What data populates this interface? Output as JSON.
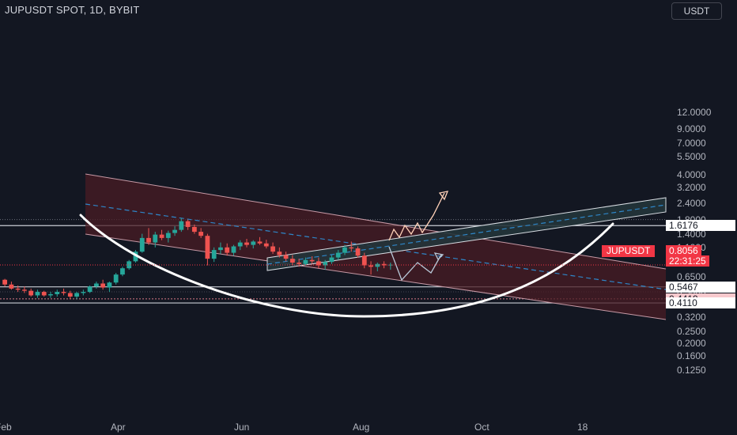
{
  "header": {
    "symbol_title": "JUPUSDT SPOT, 1D, BYBIT",
    "currency_button": "USDT"
  },
  "colors": {
    "background": "#131722",
    "up": "#26a69a",
    "down": "#ef5350",
    "channel_fill": "#4a1c24",
    "channel_edge": "#c79aa6",
    "green_channel_fill": "#23343a",
    "dashed_mid": "#2e86c8",
    "arc": "#ffffff",
    "bull_arrow": "#ffd1b8",
    "bear_arrow": "#b8c8d8",
    "current_price": "#f23645"
  },
  "chart_data": {
    "type": "candlestick",
    "y_scale": "log",
    "yticks": [
      "12.0000",
      "9.0000",
      "7.0000",
      "5.5000",
      "4.0000",
      "3.2000",
      "2.4000",
      "1.8000",
      "1.4000",
      "1.1000",
      "0.8500",
      "0.6500",
      "0.5000",
      "0.3200",
      "0.2500",
      "0.2000",
      "0.1600",
      "0.1250"
    ],
    "xticks": [
      "Feb",
      "Apr",
      "Jun",
      "Aug",
      "Oct",
      "18"
    ],
    "price_levels": [
      {
        "value": "1.6176",
        "style": "light"
      },
      {
        "value": "0.5467",
        "style": "light"
      },
      {
        "value": "0.4419",
        "style": "pink"
      },
      {
        "value": "0.4110",
        "style": "light"
      }
    ],
    "current": {
      "symbol": "JUPUSDT",
      "price": "0.8056",
      "countdown": "22:31:25"
    },
    "ohlc_approx": [
      [
        0.62,
        0.63,
        0.55,
        0.57
      ],
      [
        0.57,
        0.6,
        0.52,
        0.53
      ],
      [
        0.53,
        0.56,
        0.5,
        0.52
      ],
      [
        0.52,
        0.55,
        0.49,
        0.51
      ],
      [
        0.51,
        0.53,
        0.46,
        0.47
      ],
      [
        0.47,
        0.52,
        0.45,
        0.5
      ],
      [
        0.5,
        0.51,
        0.46,
        0.47
      ],
      [
        0.47,
        0.5,
        0.45,
        0.48
      ],
      [
        0.48,
        0.52,
        0.46,
        0.5
      ],
      [
        0.5,
        0.53,
        0.47,
        0.49
      ],
      [
        0.49,
        0.51,
        0.44,
        0.46
      ],
      [
        0.46,
        0.5,
        0.44,
        0.49
      ],
      [
        0.49,
        0.52,
        0.47,
        0.5
      ],
      [
        0.5,
        0.56,
        0.49,
        0.55
      ],
      [
        0.55,
        0.6,
        0.53,
        0.58
      ],
      [
        0.58,
        0.62,
        0.52,
        0.54
      ],
      [
        0.54,
        0.6,
        0.5,
        0.59
      ],
      [
        0.59,
        0.7,
        0.57,
        0.68
      ],
      [
        0.68,
        0.78,
        0.66,
        0.76
      ],
      [
        0.76,
        0.88,
        0.74,
        0.86
      ],
      [
        0.86,
        1.05,
        0.84,
        1.02
      ],
      [
        1.02,
        1.4,
        1.0,
        1.3
      ],
      [
        1.3,
        1.55,
        1.15,
        1.2
      ],
      [
        1.2,
        1.45,
        1.1,
        1.38
      ],
      [
        1.38,
        1.5,
        1.25,
        1.3
      ],
      [
        1.3,
        1.48,
        1.2,
        1.42
      ],
      [
        1.42,
        1.6,
        1.35,
        1.5
      ],
      [
        1.5,
        1.85,
        1.45,
        1.75
      ],
      [
        1.75,
        1.8,
        1.5,
        1.58
      ],
      [
        1.58,
        1.65,
        1.4,
        1.45
      ],
      [
        1.45,
        1.55,
        1.3,
        1.35
      ],
      [
        1.35,
        1.4,
        0.8,
        0.9
      ],
      [
        0.9,
        1.1,
        0.85,
        1.05
      ],
      [
        1.05,
        1.2,
        0.98,
        1.1
      ],
      [
        1.1,
        1.18,
        0.95,
        1.0
      ],
      [
        1.0,
        1.15,
        0.95,
        1.12
      ],
      [
        1.12,
        1.25,
        1.05,
        1.2
      ],
      [
        1.2,
        1.28,
        1.1,
        1.15
      ],
      [
        1.15,
        1.25,
        1.08,
        1.22
      ],
      [
        1.22,
        1.32,
        1.15,
        1.18
      ],
      [
        1.18,
        1.26,
        1.08,
        1.12
      ],
      [
        1.12,
        1.2,
        0.98,
        1.02
      ],
      [
        1.02,
        1.1,
        0.92,
        0.96
      ],
      [
        0.96,
        1.02,
        0.86,
        0.9
      ],
      [
        0.9,
        0.96,
        0.8,
        0.84
      ],
      [
        0.84,
        0.9,
        0.78,
        0.82
      ],
      [
        0.82,
        0.92,
        0.8,
        0.88
      ],
      [
        0.88,
        0.94,
        0.82,
        0.86
      ],
      [
        0.86,
        0.92,
        0.76,
        0.8
      ],
      [
        0.8,
        0.88,
        0.74,
        0.85
      ],
      [
        0.85,
        0.96,
        0.82,
        0.92
      ],
      [
        0.92,
        1.05,
        0.88,
        1.0
      ],
      [
        1.0,
        1.15,
        0.96,
        1.1
      ],
      [
        1.1,
        1.22,
        1.02,
        1.08
      ],
      [
        1.08,
        1.12,
        0.92,
        0.95
      ],
      [
        0.95,
        1.0,
        0.76,
        0.8
      ],
      [
        0.8,
        0.86,
        0.68,
        0.78
      ],
      [
        0.78,
        0.84,
        0.72,
        0.82
      ],
      [
        0.82,
        0.86,
        0.76,
        0.8
      ],
      [
        0.8,
        0.84,
        0.74,
        0.81
      ]
    ]
  }
}
